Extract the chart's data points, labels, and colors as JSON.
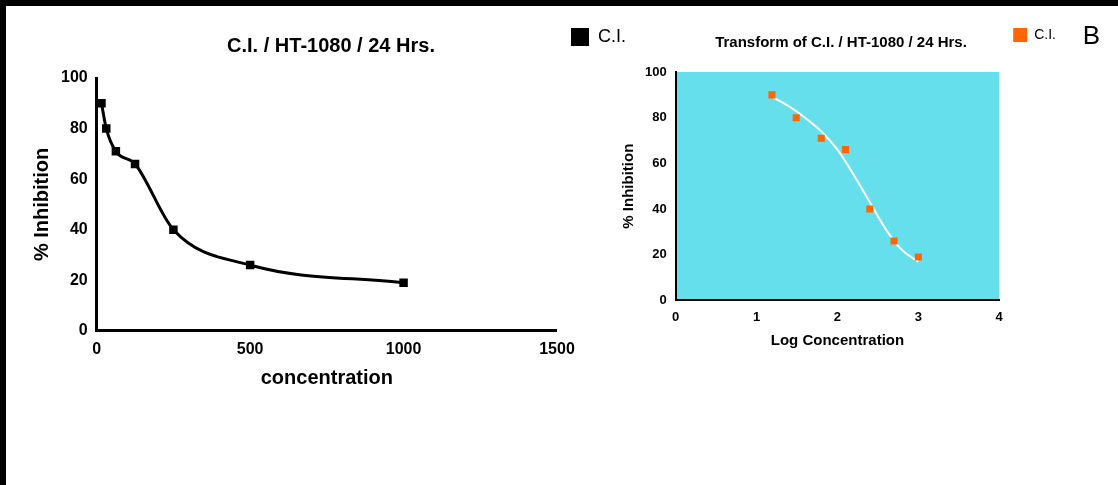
{
  "chart_data": [
    {
      "type": "line",
      "title": "C.I. / HT-1080 / 24 Hrs.",
      "xlabel": "concentration",
      "ylabel": "% Inhibition",
      "x": [
        15.6,
        31.25,
        62.5,
        125,
        250,
        500,
        1000
      ],
      "series": [
        {
          "name": "C.I.",
          "color": "#000000",
          "values": [
            90,
            80,
            71,
            66,
            40,
            26,
            19
          ]
        }
      ],
      "xlim": [
        0,
        1500
      ],
      "xticks": [
        0,
        500,
        1000,
        1500
      ],
      "ylim": [
        0,
        100
      ],
      "yticks": [
        0,
        20,
        40,
        60,
        80,
        100
      ],
      "grid": false,
      "legend": "top right",
      "marker": "square",
      "line_style": "solid"
    },
    {
      "type": "scatter",
      "title": "Transform of C.I. / HT-1080 / 24 Hrs.",
      "xlabel": "Log Concentration",
      "ylabel": "% Inhibition",
      "annotations": [
        "B"
      ],
      "series": [
        {
          "name": "C.I.",
          "color": "#ff6600",
          "x": [
            1.19,
            1.49,
            1.8,
            2.1,
            2.4,
            2.7,
            3.0
          ],
          "values": [
            90,
            80,
            71,
            66,
            40,
            26,
            19
          ]
        },
        {
          "type": "line",
          "color": "#ffffff",
          "marker": "none",
          "x": [
            1.2,
            1.4,
            1.6,
            1.8,
            2.0,
            2.2,
            2.4,
            2.6,
            2.8,
            3.0
          ],
          "values": [
            89,
            85,
            80,
            74,
            66,
            55,
            43,
            31,
            22,
            17
          ]
        }
      ],
      "xlim": [
        0,
        4
      ],
      "xticks": [
        0,
        1,
        2,
        3,
        4
      ],
      "ylim": [
        0,
        100
      ],
      "yticks": [
        0,
        20,
        40,
        60,
        80,
        100
      ],
      "grid": false,
      "legend": "top right",
      "marker": "square"
    }
  ]
}
